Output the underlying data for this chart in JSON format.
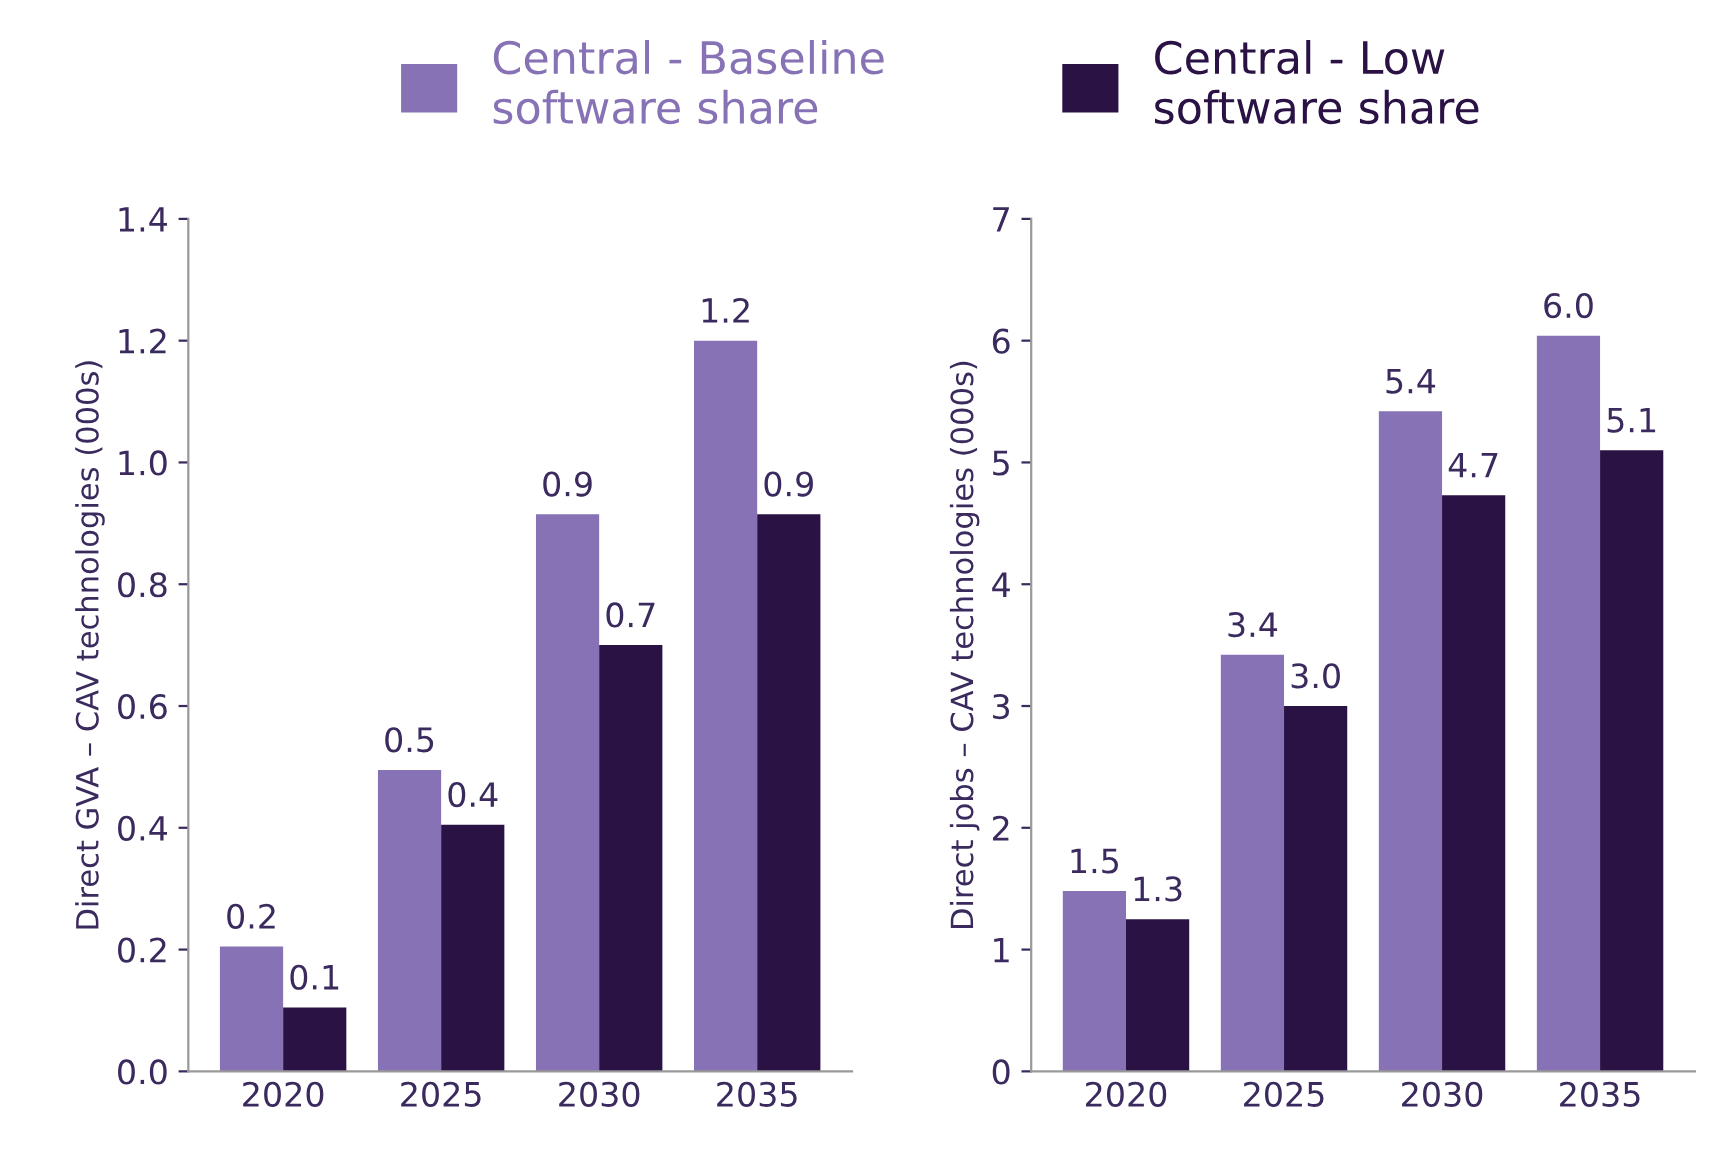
{
  "chart_data": [
    {
      "type": "bar",
      "categories": [
        "2020",
        "2025",
        "2030",
        "2035"
      ],
      "ylabel": "Direct GVA – CAV technologies (000s)",
      "ylim": [
        0,
        1.4
      ],
      "yticks": [
        "0.0",
        "0.2",
        "0.4",
        "0.6",
        "0.8",
        "1.0",
        "1.2",
        "1.4"
      ],
      "legend": "top",
      "grid": false,
      "series": [
        {
          "name": "Central - Baseline\nsoftware share",
          "color": "#8672b5",
          "values": [
            0.205,
            0.495,
            0.915,
            1.2
          ],
          "value_labels": [
            "0.2",
            "0.5",
            "0.9",
            "1.2"
          ]
        },
        {
          "name": "Central - Low\nsoftware share",
          "color": "#2a1245",
          "values": [
            0.105,
            0.405,
            0.7,
            0.915
          ],
          "value_labels": [
            "0.1",
            "0.4",
            "0.7",
            "0.9"
          ]
        }
      ]
    },
    {
      "type": "bar",
      "categories": [
        "2020",
        "2025",
        "2030",
        "2035"
      ],
      "ylabel": "Direct jobs – CAV technologies (000s)",
      "ylim": [
        0,
        7
      ],
      "yticks": [
        0,
        1,
        2,
        3,
        4,
        5,
        6,
        7
      ],
      "legend": "top",
      "grid": false,
      "series": [
        {
          "name": "Central - Baseline\nsoftware share",
          "color": "#8672b5",
          "values": [
            1.48,
            3.42,
            5.42,
            6.04
          ],
          "value_labels": [
            "1.5",
            "3.4",
            "5.4",
            "6.0"
          ]
        },
        {
          "name": "Central - Low\nsoftware share",
          "color": "#2a1245",
          "values": [
            1.25,
            3.0,
            4.73,
            5.1
          ],
          "value_labels": [
            "1.3",
            "3.0",
            "4.7",
            "5.1"
          ]
        }
      ]
    }
  ]
}
